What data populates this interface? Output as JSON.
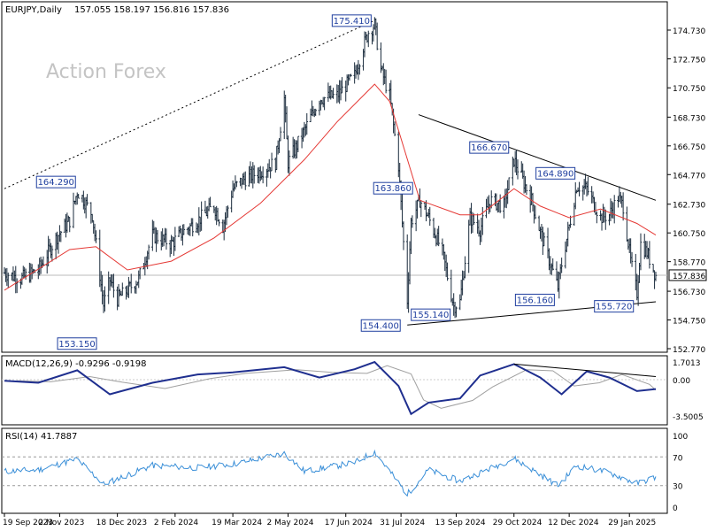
{
  "chart_data": {
    "type": "candlestick",
    "symbol_label": "EURJPY,Daily",
    "ohlc_label": "157.055 158.197 156.816 157.836",
    "watermark": "Action Forex",
    "current_price": 157.836,
    "current_price_label": "157.836",
    "y_ticks": [
      "174.730",
      "172.750",
      "170.750",
      "168.730",
      "166.750",
      "164.770",
      "162.730",
      "160.750",
      "158.770",
      "156.730",
      "154.750",
      "152.770"
    ],
    "x_ticks": [
      "19 Sep 2023",
      "2 Nov 2023",
      "18 Dec 2023",
      "2 Feb 2024",
      "19 Mar 2024",
      "2 May 2024",
      "17 Jun 2024",
      "31 Jul 2024",
      "13 Sep 2024",
      "29 Oct 2024",
      "12 Dec 2024",
      "29 Jan 2025"
    ],
    "price_labels": [
      "175.410",
      "164.290",
      "153.150",
      "163.860",
      "154.400",
      "155.140",
      "166.670",
      "164.890",
      "156.160",
      "155.720"
    ],
    "close_series": [
      {
        "date": "2023-09-19",
        "close": 158.0
      },
      {
        "date": "2023-10-02",
        "close": 157.6
      },
      {
        "date": "2023-10-16",
        "close": 158.2
      },
      {
        "date": "2023-10-31",
        "close": 160.5
      },
      {
        "date": "2023-11-10",
        "close": 161.6
      },
      {
        "date": "2023-11-16",
        "close": 163.6
      },
      {
        "date": "2023-11-20",
        "close": 163.2
      },
      {
        "date": "2023-11-28",
        "close": 162.0
      },
      {
        "date": "2023-12-07",
        "close": 155.8
      },
      {
        "date": "2023-12-12",
        "close": 157.5
      },
      {
        "date": "2023-12-18",
        "close": 156.2
      },
      {
        "date": "2023-12-26",
        "close": 156.8
      },
      {
        "date": "2024-01-04",
        "close": 157.6
      },
      {
        "date": "2024-01-15",
        "close": 160.6
      },
      {
        "date": "2024-01-30",
        "close": 160.0
      },
      {
        "date": "2024-02-08",
        "close": 160.8
      },
      {
        "date": "2024-02-20",
        "close": 161.6
      },
      {
        "date": "2024-03-04",
        "close": 162.6
      },
      {
        "date": "2024-03-11",
        "close": 161.2
      },
      {
        "date": "2024-03-19",
        "close": 163.8
      },
      {
        "date": "2024-03-27",
        "close": 164.4
      },
      {
        "date": "2024-04-10",
        "close": 165.0
      },
      {
        "date": "2024-04-22",
        "close": 165.6
      },
      {
        "date": "2024-04-29",
        "close": 170.0
      },
      {
        "date": "2024-05-02",
        "close": 165.6
      },
      {
        "date": "2024-05-15",
        "close": 167.8
      },
      {
        "date": "2024-05-27",
        "close": 170.0
      },
      {
        "date": "2024-06-10",
        "close": 170.2
      },
      {
        "date": "2024-06-24",
        "close": 171.6
      },
      {
        "date": "2024-07-01",
        "close": 173.6
      },
      {
        "date": "2024-07-05",
        "close": 174.6
      },
      {
        "date": "2024-07-10",
        "close": 175.1
      },
      {
        "date": "2024-07-15",
        "close": 172.0
      },
      {
        "date": "2024-07-22",
        "close": 170.2
      },
      {
        "date": "2024-07-29",
        "close": 165.4
      },
      {
        "date": "2024-08-05",
        "close": 156.1
      },
      {
        "date": "2024-08-08",
        "close": 161.5
      },
      {
        "date": "2024-08-15",
        "close": 163.0
      },
      {
        "date": "2024-08-22",
        "close": 161.8
      },
      {
        "date": "2024-09-02",
        "close": 159.4
      },
      {
        "date": "2024-09-11",
        "close": 155.7
      },
      {
        "date": "2024-09-16",
        "close": 156.0
      },
      {
        "date": "2024-09-24",
        "close": 161.8
      },
      {
        "date": "2024-10-02",
        "close": 161.0
      },
      {
        "date": "2024-10-10",
        "close": 163.0
      },
      {
        "date": "2024-10-21",
        "close": 162.6
      },
      {
        "date": "2024-10-29",
        "close": 165.8
      },
      {
        "date": "2024-11-05",
        "close": 164.4
      },
      {
        "date": "2024-11-12",
        "close": 163.0
      },
      {
        "date": "2024-11-19",
        "close": 160.8
      },
      {
        "date": "2024-12-03",
        "close": 157.0
      },
      {
        "date": "2024-12-06",
        "close": 158.6
      },
      {
        "date": "2024-12-12",
        "close": 161.2
      },
      {
        "date": "2024-12-18",
        "close": 164.0
      },
      {
        "date": "2024-12-26",
        "close": 163.8
      },
      {
        "date": "2025-01-06",
        "close": 161.8
      },
      {
        "date": "2025-01-13",
        "close": 162.0
      },
      {
        "date": "2025-01-20",
        "close": 163.2
      },
      {
        "date": "2025-01-24",
        "close": 162.6
      },
      {
        "date": "2025-01-30",
        "close": 158.8
      },
      {
        "date": "2025-02-04",
        "close": 156.6
      },
      {
        "date": "2025-02-07",
        "close": 160.0
      },
      {
        "date": "2025-02-12",
        "close": 159.4
      },
      {
        "date": "2025-02-19",
        "close": 157.8
      }
    ],
    "ma_series": [
      {
        "date": "2023-09-19",
        "value": 156.8
      },
      {
        "date": "2023-11-10",
        "value": 159.6
      },
      {
        "date": "2023-12-01",
        "value": 159.8
      },
      {
        "date": "2023-12-26",
        "value": 158.2
      },
      {
        "date": "2024-01-30",
        "value": 158.8
      },
      {
        "date": "2024-03-04",
        "value": 160.4
      },
      {
        "date": "2024-04-10",
        "value": 162.8
      },
      {
        "date": "2024-05-15",
        "value": 165.8
      },
      {
        "date": "2024-06-10",
        "value": 168.4
      },
      {
        "date": "2024-07-10",
        "value": 171.0
      },
      {
        "date": "2024-07-22",
        "value": 169.8
      },
      {
        "date": "2024-08-15",
        "value": 163.0
      },
      {
        "date": "2024-09-16",
        "value": 162.0
      },
      {
        "date": "2024-10-02",
        "value": 162.0
      },
      {
        "date": "2024-10-29",
        "value": 163.8
      },
      {
        "date": "2024-11-19",
        "value": 162.6
      },
      {
        "date": "2024-12-12",
        "value": 161.8
      },
      {
        "date": "2025-01-06",
        "value": 162.4
      },
      {
        "date": "2025-02-04",
        "value": 161.4
      },
      {
        "date": "2025-02-19",
        "value": 160.6
      }
    ],
    "trendlines": [
      {
        "from": {
          "date": "2023-09-19",
          "value": 163.8
        },
        "to": {
          "date": "2024-07-10",
          "value": 175.4
        },
        "style": "dotted"
      },
      {
        "from": {
          "date": "2024-08-14",
          "value": 168.9
        },
        "to": {
          "date": "2025-02-19",
          "value": 163.0
        },
        "style": "solid"
      },
      {
        "from": {
          "date": "2024-08-05",
          "value": 154.4
        },
        "to": {
          "date": "2025-02-19",
          "value": 156.0
        },
        "style": "solid"
      }
    ],
    "macd": {
      "label": "MACD(12,26,9) -0.9296 -0.9198",
      "y_ticks": [
        "1.7013",
        "0.00",
        "-3.5005"
      ],
      "series": [
        {
          "date": "2023-09-19",
          "value": -0.1
        },
        {
          "date": "2023-10-16",
          "value": -0.3
        },
        {
          "date": "2023-11-16",
          "value": 0.9
        },
        {
          "date": "2023-12-12",
          "value": -1.4
        },
        {
          "date": "2024-01-15",
          "value": -0.3
        },
        {
          "date": "2024-02-20",
          "value": 0.5
        },
        {
          "date": "2024-03-19",
          "value": 0.7
        },
        {
          "date": "2024-04-29",
          "value": 1.2
        },
        {
          "date": "2024-05-27",
          "value": 0.2
        },
        {
          "date": "2024-06-24",
          "value": 1.0
        },
        {
          "date": "2024-07-10",
          "value": 1.7
        },
        {
          "date": "2024-07-29",
          "value": -0.6
        },
        {
          "date": "2024-08-08",
          "value": -3.3
        },
        {
          "date": "2024-08-22",
          "value": -2.2
        },
        {
          "date": "2024-09-16",
          "value": -1.8
        },
        {
          "date": "2024-10-02",
          "value": 0.4
        },
        {
          "date": "2024-10-29",
          "value": 1.5
        },
        {
          "date": "2024-11-19",
          "value": 0.2
        },
        {
          "date": "2024-12-06",
          "value": -1.4
        },
        {
          "date": "2024-12-26",
          "value": 0.8
        },
        {
          "date": "2025-01-13",
          "value": 0.2
        },
        {
          "date": "2025-02-04",
          "value": -1.1
        },
        {
          "date": "2025-02-19",
          "value": -0.9
        }
      ]
    },
    "rsi": {
      "label": "RSI(14) 41.7887",
      "y_ticks": [
        "100",
        "70",
        "30",
        "0"
      ],
      "series": [
        {
          "date": "2023-09-19",
          "value": 50
        },
        {
          "date": "2023-10-16",
          "value": 52
        },
        {
          "date": "2023-11-16",
          "value": 67
        },
        {
          "date": "2023-12-07",
          "value": 32
        },
        {
          "date": "2024-01-15",
          "value": 58
        },
        {
          "date": "2024-02-20",
          "value": 55
        },
        {
          "date": "2024-03-19",
          "value": 60
        },
        {
          "date": "2024-04-29",
          "value": 75
        },
        {
          "date": "2024-05-15",
          "value": 50
        },
        {
          "date": "2024-06-24",
          "value": 62
        },
        {
          "date": "2024-07-10",
          "value": 77
        },
        {
          "date": "2024-08-05",
          "value": 18
        },
        {
          "date": "2024-08-22",
          "value": 52
        },
        {
          "date": "2024-09-16",
          "value": 36
        },
        {
          "date": "2024-10-29",
          "value": 68
        },
        {
          "date": "2024-12-03",
          "value": 30
        },
        {
          "date": "2024-12-18",
          "value": 58
        },
        {
          "date": "2025-01-13",
          "value": 48
        },
        {
          "date": "2025-02-04",
          "value": 33
        },
        {
          "date": "2025-02-19",
          "value": 42
        }
      ]
    },
    "colors": {
      "candle": "#1a2b3c",
      "ma": "#e53935",
      "macd": "#1f2f8f",
      "macd_signal": "#a0a0a0",
      "rsi": "#3a8fd8",
      "trendline": "#000000",
      "label_border": "#1f3f9f",
      "label_text": "#1f3f9f",
      "watermark": "#c4c4c4"
    }
  }
}
